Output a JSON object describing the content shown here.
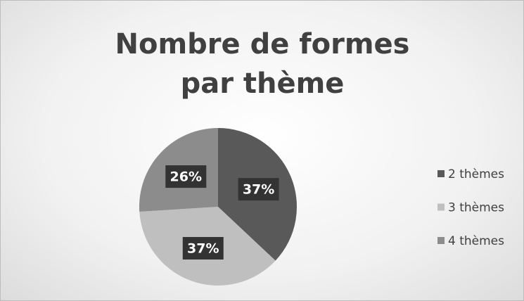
{
  "chart_data": {
    "type": "pie",
    "title": "Nombre de formes par thème",
    "categories": [
      "2 thèmes",
      "3 thèmes",
      "4 thèmes"
    ],
    "values": [
      37,
      37,
      26
    ],
    "value_labels": [
      "37%",
      "37%",
      "26%"
    ],
    "colors": [
      "#595959",
      "#bfbfbf",
      "#8c8c8c"
    ],
    "legend": "right"
  }
}
